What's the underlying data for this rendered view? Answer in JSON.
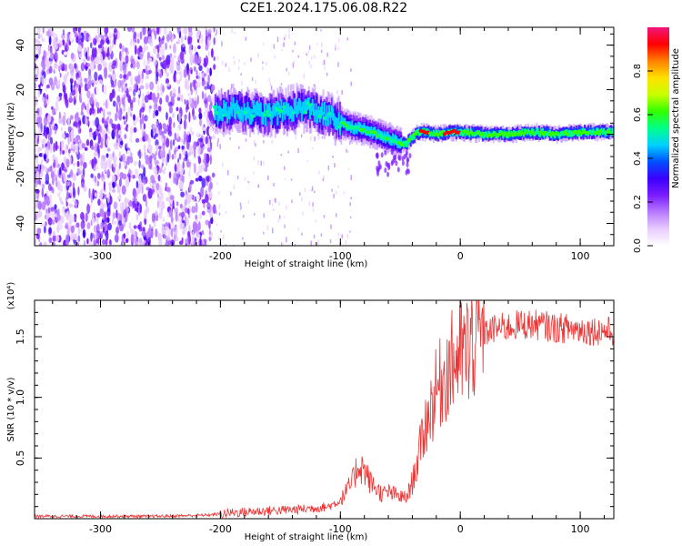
{
  "title": "C2E1.2024.175.06.08.R22",
  "colors": {
    "snr_line": "#ee3333",
    "axis": "#000000",
    "spectrogram_palette": [
      "#ffffff",
      "#e8ccff",
      "#b87aff",
      "#7a1cff",
      "#3a00ff",
      "#0050ff",
      "#00d2ff",
      "#00ff88",
      "#33ff00",
      "#c8ff00",
      "#ffe000",
      "#ff8000",
      "#ff0000",
      "#f0167a"
    ]
  },
  "chart_data": [
    {
      "type": "heatmap",
      "title": "C2E1.2024.175.06.08.R22",
      "xlabel": "Height of straight line (km)",
      "ylabel": "Frequency (Hz)",
      "xlim": [
        -355,
        128
      ],
      "ylim": [
        -50,
        48
      ],
      "xticks": [
        -300,
        -200,
        -100,
        0,
        100
      ],
      "yticks": [
        -40,
        -20,
        0,
        20,
        40
      ],
      "xtick_labels": [
        "-300",
        "-200",
        "-100",
        "0",
        "100"
      ],
      "ytick_labels": [
        "-40",
        "-20",
        "0",
        "20",
        "40"
      ],
      "colorbar": {
        "label": "Normalized spectral amplitude",
        "range": [
          0,
          1
        ],
        "ticks": [
          0.0,
          0.2,
          0.4,
          0.6,
          0.8
        ],
        "tick_labels": [
          "0.0",
          "0.2",
          "0.4",
          "0.6",
          "0.8"
        ]
      },
      "regions": [
        {
          "x_range": [
            -355,
            -205
          ],
          "frequency_range": [
            -50,
            48
          ],
          "amplitude": 0.12,
          "description": "noise"
        },
        {
          "x_range": [
            -205,
            -100
          ],
          "frequency_center": 10,
          "frequency_width": 8,
          "amplitude": 0.35
        },
        {
          "x_range": [
            -100,
            -50
          ],
          "frequency_center": -3,
          "frequency_width": 6,
          "amplitude": 0.45
        },
        {
          "x_range": [
            -50,
            128
          ],
          "frequency_center": 0,
          "frequency_width": 3,
          "amplitude": 0.55
        }
      ],
      "ridge": {
        "x": [
          -205,
          -190,
          -175,
          -160,
          -150,
          -140,
          -130,
          -120,
          -110,
          -100,
          -90,
          -80,
          -70,
          -60,
          -50,
          -45,
          -40,
          -35,
          -30,
          -20,
          -10,
          0,
          20,
          40,
          60,
          80,
          100,
          128
        ],
        "y": [
          10,
          11,
          10,
          9,
          10,
          11,
          12,
          10,
          8,
          5,
          3,
          2,
          0,
          -2,
          -4,
          -4,
          -1,
          1,
          1,
          0,
          1,
          1,
          0,
          0,
          1,
          0,
          1,
          1
        ]
      }
    },
    {
      "type": "line",
      "xlabel": "Height of straight line (km)",
      "ylabel": "SNR (10 * v/v)",
      "yscale_label": "(x10⁴)",
      "xlim": [
        -355,
        128
      ],
      "ylim": [
        0,
        1.8
      ],
      "xticks": [
        -300,
        -200,
        -100,
        0,
        100
      ],
      "yticks": [
        0.5,
        1.0,
        1.5
      ],
      "xtick_labels": [
        "-300",
        "-200",
        "-100",
        "0",
        "100"
      ],
      "ytick_labels": [
        "0.5",
        "1.0",
        "1.5"
      ],
      "series": [
        {
          "x": [
            -355,
            -300,
            -250,
            -210,
            -190,
            -170,
            -150,
            -130,
            -110,
            -100,
            -90,
            -85,
            -80,
            -75,
            -70,
            -65,
            -60,
            -55,
            -50,
            -45,
            -40,
            -35,
            -30,
            -25,
            -20,
            -15,
            -10,
            -5,
            0,
            5,
            10,
            15,
            20,
            25,
            30,
            40,
            50,
            60,
            70,
            80,
            90,
            100,
            110,
            120,
            128
          ],
          "y": [
            0.02,
            0.02,
            0.02,
            0.03,
            0.05,
            0.06,
            0.07,
            0.08,
            0.1,
            0.15,
            0.3,
            0.45,
            0.4,
            0.3,
            0.25,
            0.2,
            0.22,
            0.2,
            0.18,
            0.17,
            0.3,
            0.5,
            0.75,
            0.9,
            1.05,
            1.15,
            1.25,
            1.3,
            1.35,
            1.38,
            1.45,
            1.5,
            1.53,
            1.55,
            1.57,
            1.58,
            1.6,
            1.6,
            1.59,
            1.57,
            1.57,
            1.56,
            1.55,
            1.55,
            1.54
          ]
        }
      ]
    }
  ]
}
